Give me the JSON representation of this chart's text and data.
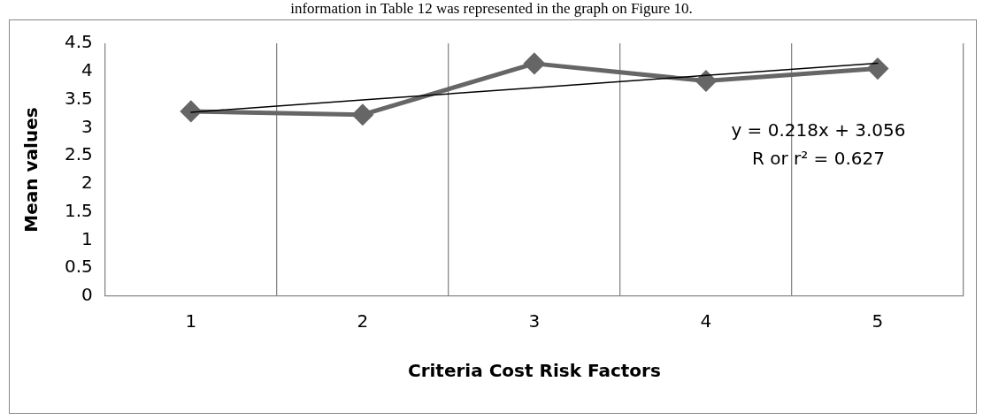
{
  "chart_data": {
    "type": "line",
    "categories": [
      "1",
      "2",
      "3",
      "4",
      "5"
    ],
    "series": [
      {
        "color": "#666666",
        "values": [
          3.29,
          3.23,
          4.14,
          3.83,
          4.05
        ],
        "marker": "diamond"
      },
      {
        "color": "#000000",
        "values": [
          3.274,
          3.492,
          3.71,
          3.928,
          4.146
        ],
        "marker": "none"
      }
    ],
    "xlabel": "Criteria Cost Risk Factors",
    "ylabel": "Mean values",
    "ylim": [
      0,
      4.5
    ],
    "yticks": [
      0,
      0.5,
      1,
      1.5,
      2,
      2.5,
      3,
      3.5,
      4,
      4.5
    ],
    "grid": "x",
    "legend": false,
    "annotations": [
      "information in Table 12 was represented in the graph on Figure 10.",
      "y = 0.218x + 3.056",
      "R or r² = 0.627"
    ]
  }
}
